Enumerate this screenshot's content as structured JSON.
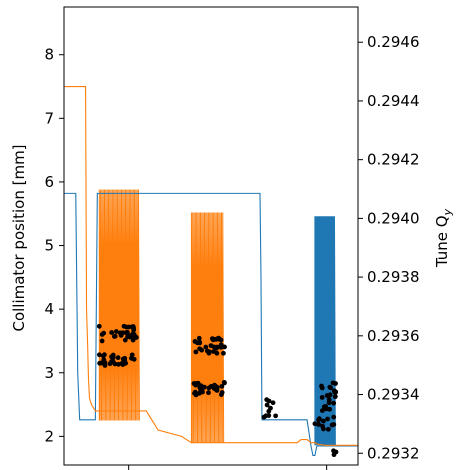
{
  "chart_data": {
    "type": "line",
    "title": "",
    "xlabel": "",
    "ylabel": "Collimator position [mm]",
    "y2label": "Tune Q",
    "y2label_sub": "y",
    "ylim": [
      1.55,
      8.75
    ],
    "y2lim": [
      0.29316,
      0.29472
    ],
    "xlim": [
      0,
      150
    ],
    "yticks": [
      2,
      3,
      4,
      5,
      6,
      7,
      8
    ],
    "y2ticks": [
      0.2932,
      0.2934,
      0.2936,
      0.2938,
      0.294,
      0.2942,
      0.2944,
      0.2946
    ],
    "y2tick_labels": [
      "0.2932",
      "0.2934",
      "0.2936",
      "0.2938",
      "0.2940",
      "0.2942",
      "0.2944",
      "0.2946"
    ],
    "xticks": [
      33,
      134
    ],
    "colors": {
      "series_blue": "#1f77b4",
      "series_orange": "#ff7f0e",
      "points": "#000000"
    },
    "series": [
      {
        "axis": "left",
        "color": "#1f77b4",
        "x": [
          0,
          6,
          7,
          8,
          9,
          15,
          16,
          17,
          33,
          100,
          100.5,
          101,
          119,
          121,
          124,
          125,
          126,
          127,
          128,
          129,
          133,
          135,
          136,
          137,
          138,
          150
        ],
        "y": [
          5.82,
          5.82,
          3.0,
          2.26,
          2.26,
          2.26,
          2.26,
          5.82,
          5.82,
          5.82,
          4.5,
          2.26,
          2.26,
          2.26,
          2.26,
          2.06,
          1.85,
          1.7,
          1.7,
          1.85,
          1.85,
          1.85,
          1.85,
          1.85,
          1.85,
          1.85
        ]
      },
      {
        "axis": "left",
        "color": "#ff7f0e",
        "x": [
          0,
          11,
          11.5,
          12,
          12.5,
          13,
          14,
          15,
          16,
          17,
          33,
          42,
          44,
          46,
          48,
          60,
          65,
          75,
          80,
          90,
          100,
          110,
          119,
          121,
          124,
          126,
          128,
          129,
          133,
          138,
          150
        ],
        "y": [
          7.5,
          7.5,
          4.0,
          3.5,
          2.9,
          2.6,
          2.5,
          2.45,
          2.4,
          2.4,
          2.4,
          2.4,
          2.3,
          2.2,
          2.1,
          2.0,
          1.9,
          1.9,
          1.9,
          1.9,
          1.9,
          1.9,
          1.9,
          1.95,
          1.95,
          1.9,
          1.9,
          1.88,
          1.86,
          1.86,
          1.86
        ]
      }
    ],
    "bursts": [
      {
        "color": "#ff7f0e",
        "axis": "left",
        "x_start": 18,
        "x_end": 38,
        "y_low": 2.25,
        "y_high": 5.88,
        "count": 30
      },
      {
        "color": "#ff7f0e",
        "axis": "left",
        "x_start": 65,
        "x_end": 81,
        "y_low": 1.9,
        "y_high": 5.52,
        "count": 24
      },
      {
        "color": "#1f77b4",
        "axis": "left",
        "x_start": 128,
        "x_end": 138,
        "y_low": 1.86,
        "y_high": 5.46,
        "count": 32
      }
    ],
    "point_clusters": [
      {
        "axis": "left",
        "x_range": [
          18,
          37
        ],
        "y_bands": [
          [
            3.5,
            3.75
          ],
          [
            3.1,
            3.3
          ]
        ],
        "count": 60
      },
      {
        "axis": "left",
        "x_range": [
          66,
          82
        ],
        "y_bands": [
          [
            3.3,
            3.55
          ],
          [
            2.65,
            2.85
          ]
        ],
        "count": 60
      },
      {
        "axis": "left",
        "x_range": [
          102,
          108
        ],
        "y_bands": [
          [
            2.3,
            2.6
          ]
        ],
        "count": 10
      },
      {
        "axis": "left",
        "x_range": [
          128,
          139
        ],
        "y_bands": [
          [
            2.1,
            2.85
          ]
        ],
        "count": 35
      },
      {
        "axis": "left",
        "x_range": [
          134,
          139
        ],
        "y_bands": [
          [
            1.3,
            1.45
          ],
          [
            1.7,
            1.8
          ]
        ],
        "count": 6
      }
    ]
  }
}
